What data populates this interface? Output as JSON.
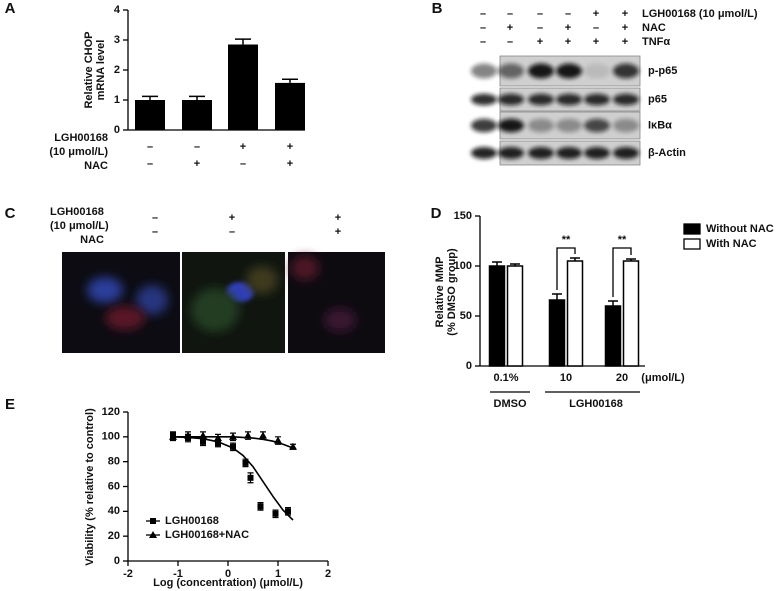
{
  "chart_data": [
    {
      "panel": "A",
      "type": "bar",
      "y_label": [
        "Relative CHOP",
        "mRNA level"
      ],
      "values": [
        1.0,
        1.0,
        2.85,
        1.57
      ],
      "errors": [
        0.12,
        0.12,
        0.18,
        0.12
      ],
      "color": "#000000",
      "ylim": [
        0,
        4
      ],
      "yticks": [
        0,
        1,
        2,
        3,
        4
      ],
      "row_labels": [
        "LGH00168",
        "(10 μmol/L)",
        "NAC"
      ],
      "rows": [
        [
          "–",
          "–",
          "+",
          "+"
        ],
        [
          "–",
          "+",
          "–",
          "+"
        ]
      ]
    },
    {
      "panel": "D",
      "type": "grouped_bar",
      "y_label": [
        "Relative MMP",
        "(% DMSO group)"
      ],
      "categories": [
        "0.1%",
        "10",
        "20"
      ],
      "unit_label": "(μmol/L)",
      "group_labels": [
        "DMSO",
        "LGH00168"
      ],
      "series": [
        {
          "name": "Without NAC",
          "color": "#000000",
          "values": [
            100,
            66,
            60
          ],
          "errors": [
            4,
            6,
            5
          ]
        },
        {
          "name": "With NAC",
          "color": "#ffffff",
          "values": [
            100,
            105,
            105
          ],
          "errors": [
            2,
            3,
            2
          ]
        }
      ],
      "annotations": [
        null,
        "**",
        "**"
      ],
      "ylim": [
        0,
        150
      ],
      "yticks": [
        0,
        50,
        100,
        150
      ],
      "legend": "upper right"
    },
    {
      "panel": "E",
      "type": "scatter",
      "x_label": "Log (concentration) (μmol/L)",
      "y_label": "Viability (% relative to control)",
      "xlim": [
        -2,
        2
      ],
      "xticks": [
        -2,
        -1,
        0,
        1,
        2
      ],
      "ylim": [
        0,
        120
      ],
      "yticks": [
        0,
        20,
        40,
        60,
        80,
        100,
        120
      ],
      "legend": "lower left",
      "series": [
        {
          "name": "LGH00168",
          "marker": "square",
          "color": "#000000",
          "x": [
            -1.1,
            -0.8,
            -0.5,
            -0.2,
            0.1,
            0.35,
            0.45,
            0.65,
            0.95,
            1.2
          ],
          "values": [
            101,
            99,
            96,
            95,
            92,
            79,
            67,
            44,
            38,
            40
          ],
          "errors": [
            3,
            3,
            3,
            3,
            3,
            3,
            4,
            3,
            3,
            3
          ],
          "fit_x": [
            -1.1,
            -0.8,
            -0.5,
            -0.2,
            0.1,
            0.3,
            0.5,
            0.7,
            0.9,
            1.1,
            1.3
          ],
          "fit_values": [
            100,
            99.5,
            98.5,
            96,
            91,
            85,
            76,
            64,
            52,
            41,
            33
          ]
        },
        {
          "name": "LGH00168+NAC",
          "marker": "triangle",
          "color": "#000000",
          "x": [
            -1.1,
            -0.8,
            -0.5,
            -0.2,
            0.1,
            0.4,
            0.7,
            1.0,
            1.3
          ],
          "values": [
            100,
            101,
            101,
            99,
            100,
            101,
            101,
            97,
            92
          ],
          "errors": [
            3,
            3,
            3,
            3,
            3,
            3,
            3,
            3,
            2
          ],
          "fit_x": [
            -1.1,
            -0.8,
            -0.5,
            -0.2,
            0.1,
            0.3,
            0.5,
            0.7,
            0.9,
            1.1,
            1.3
          ],
          "fit_values": [
            100,
            100,
            100,
            100,
            100,
            99.5,
            99,
            98,
            96.5,
            94,
            91
          ]
        }
      ]
    }
  ],
  "panel_b": {
    "letter": "B",
    "row_labels": [
      "LGH00168 (10 μmol/L)",
      "NAC",
      "TNFα"
    ],
    "rows": [
      [
        "–",
        "–",
        "–",
        "–",
        "+",
        "+"
      ],
      [
        "–",
        "+",
        "–",
        "+",
        "–",
        "+"
      ],
      [
        "–",
        "–",
        "+",
        "+",
        "+",
        "+"
      ]
    ],
    "blot_labels": [
      "p-p65",
      "p65",
      "IκBα",
      "β-Actin"
    ]
  },
  "panel_c": {
    "letter": "C",
    "row_labels": [
      "LGH00168",
      "(10 μmol/L)",
      "NAC"
    ],
    "rows": [
      [
        "–",
        "+",
        "+"
      ],
      [
        "–",
        "–",
        "+"
      ]
    ]
  }
}
